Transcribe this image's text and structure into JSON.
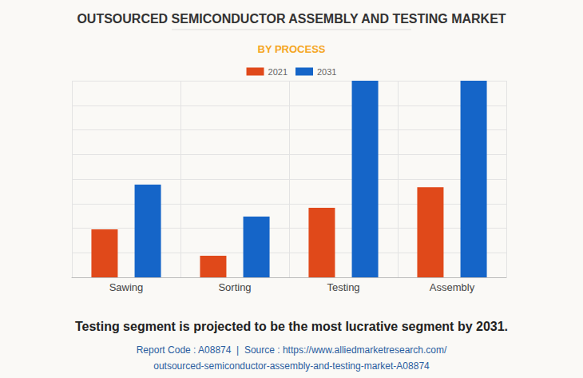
{
  "chart_data": {
    "type": "bar",
    "title": "OUTSOURCED SEMICONDUCTOR ASSEMBLY AND TESTING MARKET",
    "subtitle": "BY PROCESS",
    "categories": [
      "Sawing",
      "Sorting",
      "Testing",
      "Assembly"
    ],
    "series": [
      {
        "name": "2021",
        "color": "#e0491a",
        "values": [
          1.95,
          0.88,
          2.83,
          3.67
        ]
      },
      {
        "name": "2031",
        "color": "#1565c8",
        "values": [
          3.77,
          2.47,
          8,
          8
        ]
      }
    ],
    "ylim": [
      0,
      8
    ],
    "yticks": [
      0,
      1,
      2,
      3,
      4,
      5,
      6,
      7,
      8
    ],
    "grid": true,
    "legend": "top",
    "tick_labels": "x",
    "annotations": [
      "Testing segment is projected to be the most lucrative segment by 2031.",
      "Report Code : A08874  |  Source : https://www.alliedmarketresearch.com/outsourced-semiconductor-assembly-and-testing-market-A08874"
    ]
  }
}
